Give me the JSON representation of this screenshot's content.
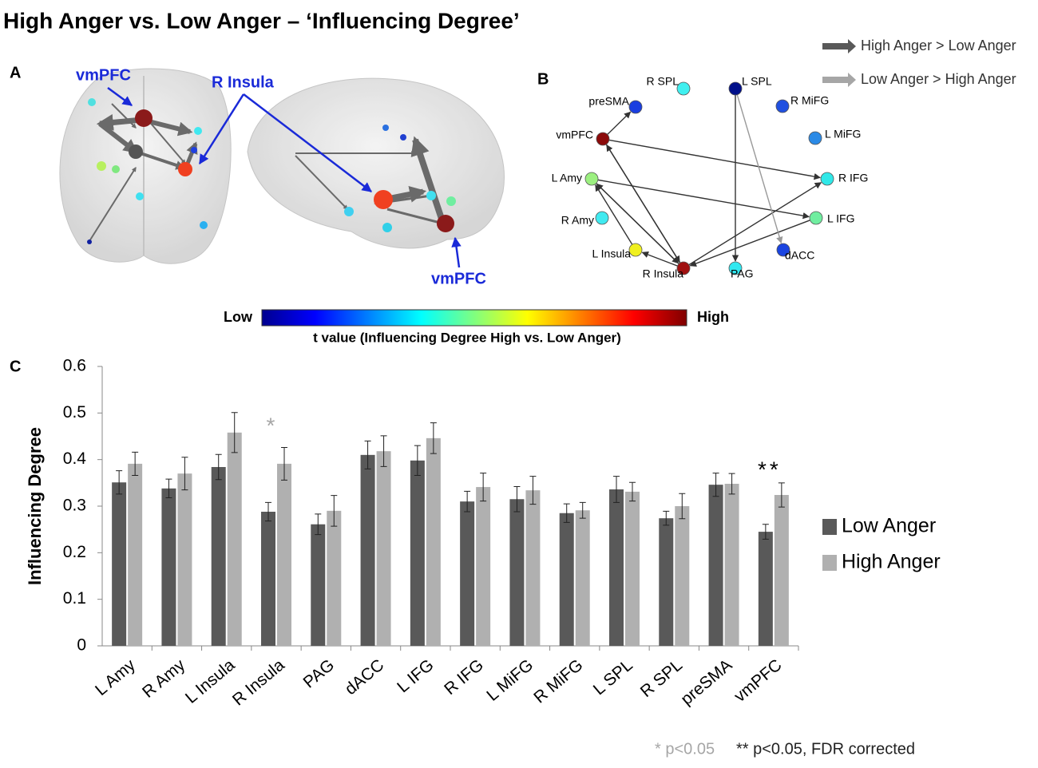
{
  "title": "High Anger  vs. Low Anger  – ‘Influencing Degree’",
  "legend": [
    {
      "label": "High Anger > Low Anger",
      "color": "#595959"
    },
    {
      "label": "Low Anger > High Anger",
      "color": "#a6a6a6"
    }
  ],
  "panel_a": {
    "label": "A",
    "annotations": [
      "vmPFC",
      "R Insula",
      "vmPFC"
    ]
  },
  "panel_b": {
    "label": "B",
    "nodes": [
      {
        "label": "R SPL",
        "color": "#40f0f0"
      },
      {
        "label": "L SPL",
        "color": "#00108a"
      },
      {
        "label": "preSMA",
        "color": "#1a3ee0"
      },
      {
        "label": "R MiFG",
        "color": "#2050e0"
      },
      {
        "label": "vmPFC",
        "color": "#8b0a0a"
      },
      {
        "label": "L MiFG",
        "color": "#2b8ae6"
      },
      {
        "label": "L Amy",
        "color": "#9cf080"
      },
      {
        "label": "R IFG",
        "color": "#30e8e8"
      },
      {
        "label": "L IFG",
        "color": "#70eea0"
      },
      {
        "label": "R Amy",
        "color": "#40eaf0"
      },
      {
        "label": "dACC",
        "color": "#1a44e0"
      },
      {
        "label": "L Insula",
        "color": "#f0f020"
      },
      {
        "label": "R Insula",
        "color": "#a01010"
      },
      {
        "label": "PAG",
        "color": "#30e8f0"
      }
    ]
  },
  "colorbar": {
    "low": "Low",
    "high": "High",
    "caption": "t value (Influencing Degree High vs. Low Anger)"
  },
  "chart_data": {
    "type": "bar",
    "panel_label": "C",
    "ylabel": "Influencing Degree",
    "categories": [
      "L Amy",
      "R Amy",
      "L Insula",
      "R Insula",
      "PAG",
      "dACC",
      "L IFG",
      "R IFG",
      "L MiFG",
      "R MiFG",
      "L SPL",
      "R SPL",
      "preSMA",
      "vmPFC"
    ],
    "series": [
      {
        "name": "Low Anger",
        "color": "#595959",
        "values": [
          0.351,
          0.338,
          0.384,
          0.288,
          0.261,
          0.41,
          0.398,
          0.31,
          0.315,
          0.285,
          0.336,
          0.274,
          0.346,
          0.245
        ],
        "errors": [
          0.025,
          0.02,
          0.027,
          0.02,
          0.022,
          0.03,
          0.032,
          0.022,
          0.027,
          0.02,
          0.028,
          0.015,
          0.025,
          0.016
        ]
      },
      {
        "name": "High Anger",
        "color": "#b0b0b0",
        "values": [
          0.391,
          0.37,
          0.458,
          0.391,
          0.29,
          0.418,
          0.446,
          0.341,
          0.334,
          0.291,
          0.331,
          0.3,
          0.348,
          0.324
        ],
        "errors": [
          0.025,
          0.035,
          0.043,
          0.035,
          0.033,
          0.033,
          0.033,
          0.03,
          0.03,
          0.017,
          0.02,
          0.027,
          0.022,
          0.026
        ]
      }
    ],
    "ylim": [
      0,
      0.6
    ],
    "yticks": [
      0,
      0.1,
      0.2,
      0.3,
      0.4,
      0.5,
      0.6
    ],
    "annotations": [
      {
        "text": "*",
        "color": "#a6a6a6"
      },
      {
        "text": "**",
        "color": "#000000"
      }
    ],
    "footnotes": [
      "* p<0.05",
      "** p<0.05, FDR corrected"
    ]
  }
}
